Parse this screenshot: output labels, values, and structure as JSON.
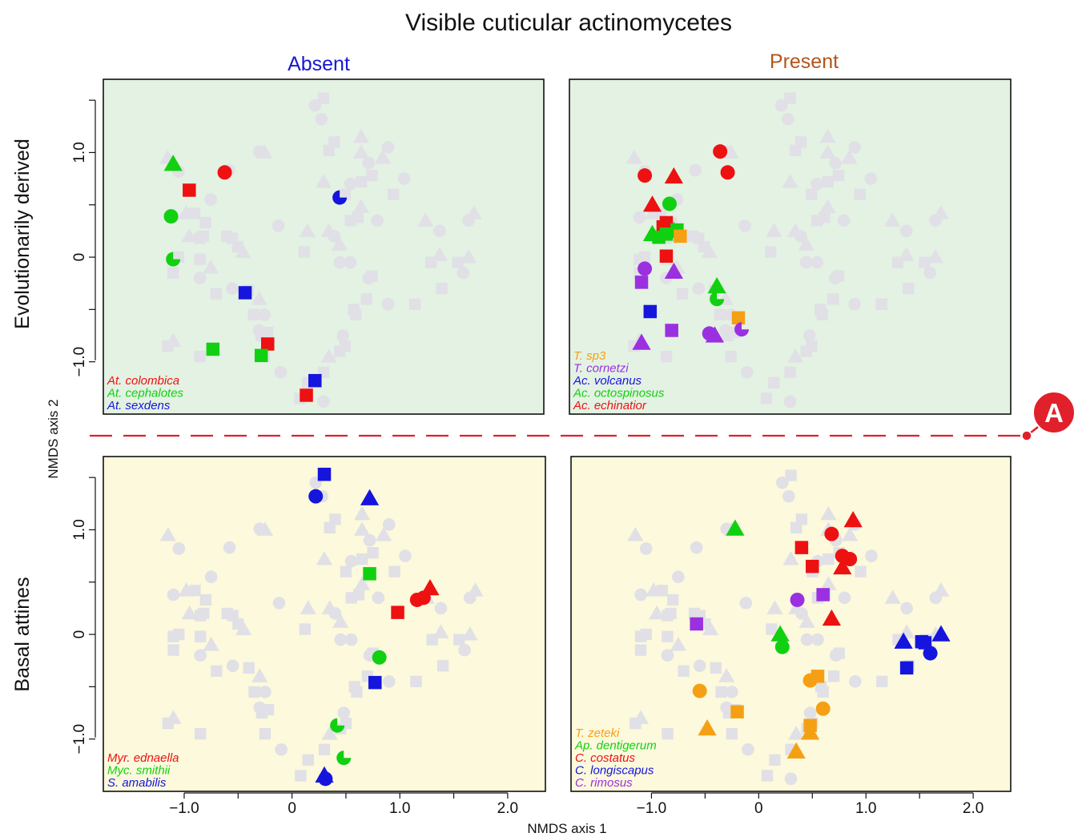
{
  "title": "Visible cuticular actinomycetes",
  "column_labels": {
    "absent": "Absent",
    "present": "Present"
  },
  "row_labels": {
    "top": "Evolutionarily derived",
    "bottom": "Basal attines"
  },
  "xlabel": "NMDS axis 1",
  "ylabel": "NMDS axis 2",
  "annotation": "A",
  "colors": {
    "title": "#111111",
    "absent": "#1818d0",
    "present": "#b5541a",
    "top_panel_bg": "#e3f2e3",
    "bottom_panel_bg": "#fcf9dc",
    "background_points": "#e0e0e6",
    "marker_A": "#e0202a",
    "red": "#ee1111",
    "green": "#11d011",
    "blue": "#1515dd",
    "orange": "#f5a014",
    "purple": "#9b30e0"
  },
  "chart_data": {
    "type": "scatter",
    "layout": "2x2 faceted",
    "xlim": [
      -1.75,
      2.35
    ],
    "ylim": [
      -1.5,
      1.7
    ],
    "xticks": [
      -1.0,
      0,
      1.0,
      2.0
    ],
    "yticks": [
      -1.0,
      0,
      1.0
    ],
    "xtick_labels": [
      "−1.0",
      "0",
      "1.0",
      "2.0"
    ],
    "ytick_labels": [
      "−1.0",
      "0",
      "1.0"
    ],
    "grid": false,
    "legend_position": "bottom-left of each panel",
    "background_points": [
      [
        -1.15,
        0.95,
        "^"
      ],
      [
        -0.98,
        0.42,
        "^"
      ],
      [
        -0.8,
        0.33,
        "s"
      ],
      [
        -0.75,
        0.55,
        "o"
      ],
      [
        -0.58,
        0.83,
        "o"
      ],
      [
        -0.3,
        1.01,
        "o"
      ],
      [
        -0.25,
        1.0,
        "^"
      ],
      [
        -0.9,
        0.42,
        "s"
      ],
      [
        -0.95,
        0.2,
        "^"
      ],
      [
        -0.85,
        0.18,
        "s"
      ],
      [
        -0.82,
        0.2,
        "s"
      ],
      [
        -0.6,
        0.2,
        "s"
      ],
      [
        -0.55,
        0.18,
        "s"
      ],
      [
        -0.5,
        0.1,
        "s"
      ],
      [
        -0.45,
        0.05,
        "^"
      ],
      [
        -1.05,
        0.0,
        "s"
      ],
      [
        -0.85,
        -0.02,
        "s"
      ],
      [
        -0.75,
        -0.1,
        "^"
      ],
      [
        -1.1,
        -0.15,
        "s"
      ],
      [
        -0.85,
        -0.2,
        "o"
      ],
      [
        -0.7,
        -0.35,
        "s"
      ],
      [
        -0.55,
        -0.3,
        "o"
      ],
      [
        -0.4,
        -0.32,
        "s"
      ],
      [
        -0.3,
        -0.4,
        "^"
      ],
      [
        -0.25,
        -0.55,
        "o"
      ],
      [
        -0.35,
        -0.55,
        "s"
      ],
      [
        -0.3,
        -0.7,
        "o"
      ],
      [
        -0.28,
        -0.75,
        "s"
      ],
      [
        -0.22,
        -0.72,
        "s"
      ],
      [
        -1.15,
        -0.85,
        "s"
      ],
      [
        -1.1,
        -0.8,
        "^"
      ],
      [
        -0.85,
        -0.95,
        "s"
      ],
      [
        -0.25,
        -0.95,
        "s"
      ],
      [
        -0.1,
        -1.1,
        "o"
      ],
      [
        0.08,
        -1.35,
        "s"
      ],
      [
        0.15,
        -1.2,
        "s"
      ],
      [
        0.35,
        -0.95,
        "^"
      ],
      [
        0.3,
        -1.1,
        "s"
      ],
      [
        0.3,
        -1.38,
        "o"
      ],
      [
        0.45,
        -0.9,
        "s"
      ],
      [
        0.48,
        -0.75,
        "o"
      ],
      [
        0.5,
        -0.85,
        "s"
      ],
      [
        0.6,
        -0.55,
        "s"
      ],
      [
        0.58,
        -0.5,
        "s"
      ],
      [
        0.7,
        -0.4,
        "s"
      ],
      [
        0.72,
        -0.2,
        "o"
      ],
      [
        0.75,
        -0.18,
        "s"
      ],
      [
        0.9,
        -0.45,
        "o"
      ],
      [
        1.15,
        -0.45,
        "s"
      ],
      [
        1.38,
        0.02,
        "^"
      ],
      [
        1.3,
        -0.05,
        "s"
      ],
      [
        1.55,
        -0.05,
        "s"
      ],
      [
        1.65,
        0.0,
        "^"
      ],
      [
        1.4,
        -0.3,
        "s"
      ],
      [
        1.6,
        -0.15,
        "o"
      ],
      [
        0.55,
        -0.05,
        "o"
      ],
      [
        0.45,
        -0.05,
        "o"
      ],
      [
        0.4,
        0.2,
        "o"
      ],
      [
        0.35,
        0.25,
        "^"
      ],
      [
        0.55,
        0.35,
        "s"
      ],
      [
        0.62,
        0.38,
        "s"
      ],
      [
        0.5,
        0.6,
        "s"
      ],
      [
        0.55,
        0.7,
        "o"
      ],
      [
        0.65,
        0.72,
        "s"
      ],
      [
        0.65,
        0.48,
        "^"
      ],
      [
        0.3,
        0.72,
        "^"
      ],
      [
        0.72,
        0.9,
        "o"
      ],
      [
        0.75,
        0.78,
        "s"
      ],
      [
        0.85,
        0.95,
        "^"
      ],
      [
        0.9,
        1.05,
        "o"
      ],
      [
        0.65,
        1.0,
        "^"
      ],
      [
        0.65,
        1.15,
        "^"
      ],
      [
        0.4,
        1.1,
        "s"
      ],
      [
        0.28,
        1.32,
        "o"
      ],
      [
        0.22,
        1.45,
        "o"
      ],
      [
        0.3,
        1.52,
        "s"
      ],
      [
        0.35,
        1.02,
        "s"
      ],
      [
        0.95,
        0.6,
        "s"
      ],
      [
        0.8,
        0.35,
        "o"
      ],
      [
        0.45,
        0.12,
        "^"
      ],
      [
        0.15,
        0.25,
        "^"
      ],
      [
        0.12,
        0.05,
        "s"
      ],
      [
        -0.12,
        0.3,
        "o"
      ],
      [
        -1.05,
        0.82,
        "o"
      ],
      [
        -1.1,
        0.38,
        "o"
      ],
      [
        -1.1,
        -0.02,
        "s"
      ],
      [
        1.05,
        0.75,
        "o"
      ],
      [
        1.25,
        0.35,
        "^"
      ],
      [
        1.38,
        0.25,
        "o"
      ],
      [
        1.65,
        0.35,
        "o"
      ],
      [
        1.7,
        0.42,
        "^"
      ]
    ],
    "panels": [
      {
        "id": "top-left",
        "legend": [
          {
            "label": "At. colombica",
            "color": "red"
          },
          {
            "label": "At. cephalotes",
            "color": "green"
          },
          {
            "label": "At. sexdens",
            "color": "blue"
          }
        ],
        "points": [
          [
            -0.62,
            0.81,
            "o",
            "red"
          ],
          [
            -0.95,
            0.64,
            "s",
            "red"
          ],
          [
            -0.22,
            -0.83,
            "s",
            "red"
          ],
          [
            0.14,
            -1.32,
            "s",
            "red"
          ],
          [
            -1.1,
            0.89,
            "^",
            "green"
          ],
          [
            -1.12,
            0.39,
            "o",
            "green"
          ],
          [
            -1.1,
            -0.02,
            "h",
            "green"
          ],
          [
            -0.73,
            -0.88,
            "s",
            "green"
          ],
          [
            -0.28,
            -0.94,
            "s",
            "green"
          ],
          [
            0.45,
            0.57,
            "h",
            "blue"
          ],
          [
            -0.43,
            -0.34,
            "s",
            "blue"
          ],
          [
            0.22,
            -1.18,
            "s",
            "blue"
          ]
        ]
      },
      {
        "id": "top-right",
        "legend": [
          {
            "label": "T. sp3",
            "color": "orange"
          },
          {
            "label": "T. cornetzi",
            "color": "purple"
          },
          {
            "label": "Ac. volcanus",
            "color": "blue"
          },
          {
            "label": "Ac. octospinosus",
            "color": "green"
          },
          {
            "label": "Ac. echinatior",
            "color": "red"
          }
        ],
        "points": [
          [
            -0.35,
            1.01,
            "o",
            "red"
          ],
          [
            -0.28,
            0.81,
            "o",
            "red"
          ],
          [
            -1.05,
            0.78,
            "o",
            "red"
          ],
          [
            -0.78,
            0.77,
            "^",
            "red"
          ],
          [
            -0.98,
            0.5,
            "^",
            "red"
          ],
          [
            -0.85,
            0.33,
            "s",
            "red"
          ],
          [
            -0.88,
            0.29,
            "s",
            "red"
          ],
          [
            -0.85,
            0.01,
            "s",
            "red"
          ],
          [
            -0.82,
            0.51,
            "o",
            "green"
          ],
          [
            -0.98,
            0.22,
            "^",
            "green"
          ],
          [
            -0.92,
            0.19,
            "s",
            "green"
          ],
          [
            -0.85,
            0.22,
            "s",
            "green"
          ],
          [
            -0.78,
            0.25,
            "^",
            "green"
          ],
          [
            -0.75,
            0.26,
            "s",
            "green"
          ],
          [
            -0.38,
            -0.28,
            "^",
            "green"
          ],
          [
            -0.38,
            -0.4,
            "h",
            "green"
          ],
          [
            -0.72,
            0.2,
            "s",
            "orange"
          ],
          [
            -0.18,
            -0.58,
            "s",
            "orange"
          ],
          [
            -1.05,
            -0.11,
            "o",
            "purple"
          ],
          [
            -1.08,
            -0.24,
            "s",
            "purple"
          ],
          [
            -0.78,
            -0.14,
            "^",
            "purple"
          ],
          [
            -0.8,
            -0.7,
            "s",
            "purple"
          ],
          [
            -1.08,
            -0.82,
            "^",
            "purple"
          ],
          [
            -0.45,
            -0.73,
            "o",
            "purple"
          ],
          [
            -0.4,
            -0.75,
            "^",
            "purple"
          ],
          [
            -0.15,
            -0.69,
            "h",
            "purple"
          ],
          [
            -1.0,
            -0.52,
            "s",
            "blue"
          ]
        ]
      },
      {
        "id": "bottom-left",
        "legend": [
          {
            "label": "Myr. ednaella",
            "color": "red"
          },
          {
            "label": "Myc. smithii",
            "color": "green"
          },
          {
            "label": "S. amabilis",
            "color": "blue"
          }
        ],
        "points": [
          [
            1.28,
            0.44,
            "^",
            "red"
          ],
          [
            1.22,
            0.35,
            "o",
            "red"
          ],
          [
            1.16,
            0.33,
            "o",
            "red"
          ],
          [
            0.98,
            0.21,
            "s",
            "red"
          ],
          [
            0.72,
            0.58,
            "s",
            "green"
          ],
          [
            0.81,
            -0.22,
            "o",
            "green"
          ],
          [
            0.42,
            -0.87,
            "h",
            "green"
          ],
          [
            0.48,
            -1.18,
            "h",
            "green"
          ],
          [
            0.3,
            1.53,
            "s",
            "blue"
          ],
          [
            0.22,
            1.32,
            "o",
            "blue"
          ],
          [
            0.72,
            1.3,
            "^",
            "blue"
          ],
          [
            0.77,
            -0.46,
            "s",
            "blue"
          ],
          [
            0.3,
            -1.35,
            "^",
            "blue"
          ],
          [
            0.31,
            -1.38,
            "o",
            "blue"
          ]
        ]
      },
      {
        "id": "bottom-right",
        "legend": [
          {
            "label": "T. zeteki",
            "color": "orange"
          },
          {
            "label": "Ap. dentigerum",
            "color": "green"
          },
          {
            "label": "C. costatus",
            "color": "red"
          },
          {
            "label": "C. longiscapus",
            "color": "blue"
          },
          {
            "label": "C. rimosus",
            "color": "purple"
          }
        ],
        "points": [
          [
            0.88,
            1.09,
            "^",
            "red"
          ],
          [
            0.68,
            0.96,
            "o",
            "red"
          ],
          [
            0.4,
            0.83,
            "s",
            "red"
          ],
          [
            0.78,
            0.75,
            "o",
            "red"
          ],
          [
            0.85,
            0.72,
            "o",
            "red"
          ],
          [
            0.5,
            0.65,
            "s",
            "red"
          ],
          [
            0.78,
            0.64,
            "^",
            "red"
          ],
          [
            0.68,
            0.15,
            "^",
            "red"
          ],
          [
            -0.22,
            1.01,
            "^",
            "green"
          ],
          [
            0.2,
            0.0,
            "^",
            "green"
          ],
          [
            0.22,
            -0.12,
            "o",
            "green"
          ],
          [
            0.55,
            -0.4,
            "s",
            "orange"
          ],
          [
            0.48,
            -0.44,
            "o",
            "orange"
          ],
          [
            -0.55,
            -0.54,
            "o",
            "orange"
          ],
          [
            -0.2,
            -0.74,
            "s",
            "orange"
          ],
          [
            0.6,
            -0.71,
            "o",
            "orange"
          ],
          [
            0.48,
            -0.87,
            "s",
            "orange"
          ],
          [
            0.48,
            -0.94,
            "^",
            "orange"
          ],
          [
            -0.48,
            -0.9,
            "^",
            "orange"
          ],
          [
            0.35,
            -1.12,
            "^",
            "orange"
          ],
          [
            1.35,
            -0.07,
            "^",
            "blue"
          ],
          [
            1.52,
            -0.07,
            "s",
            "blue"
          ],
          [
            1.55,
            -0.08,
            "s",
            "blue"
          ],
          [
            1.7,
            0.0,
            "^",
            "blue"
          ],
          [
            1.6,
            -0.18,
            "o",
            "blue"
          ],
          [
            1.38,
            -0.32,
            "s",
            "blue"
          ],
          [
            -0.58,
            0.1,
            "s",
            "purple"
          ],
          [
            0.36,
            0.33,
            "o",
            "purple"
          ],
          [
            0.6,
            0.38,
            "s",
            "purple"
          ]
        ]
      }
    ]
  }
}
